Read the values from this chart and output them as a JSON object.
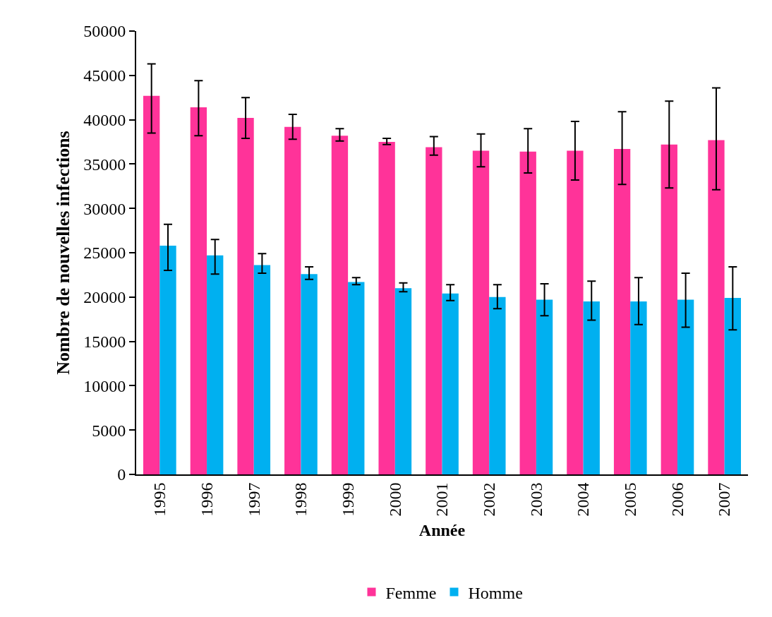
{
  "chart_data": {
    "type": "bar",
    "xlabel": "Année",
    "ylabel": "Nombre de nouvelles infections",
    "categories": [
      "1995",
      "1996",
      "1997",
      "1998",
      "1999",
      "2000",
      "2001",
      "2002",
      "2003",
      "2004",
      "2005",
      "2006",
      "2007"
    ],
    "series": [
      {
        "name": "Femme",
        "color": "#ff3399",
        "values": [
          42700,
          41400,
          40200,
          39200,
          38200,
          37500,
          36900,
          36500,
          36400,
          36500,
          36700,
          37200,
          37700
        ],
        "errors": [
          [
            38500,
            46300
          ],
          [
            38200,
            44400
          ],
          [
            37900,
            42500
          ],
          [
            37800,
            40600
          ],
          [
            37600,
            39000
          ],
          [
            37200,
            37900
          ],
          [
            36000,
            38100
          ],
          [
            34700,
            38400
          ],
          [
            34000,
            39000
          ],
          [
            33200,
            39800
          ],
          [
            32700,
            40900
          ],
          [
            32300,
            42100
          ],
          [
            32100,
            43600
          ]
        ]
      },
      {
        "name": "Homme",
        "color": "#00b0f0",
        "values": [
          25800,
          24700,
          23600,
          22600,
          21700,
          21000,
          20400,
          20000,
          19700,
          19500,
          19500,
          19700,
          19900
        ],
        "errors": [
          [
            23000,
            28200
          ],
          [
            22600,
            26500
          ],
          [
            22700,
            24900
          ],
          [
            22000,
            23400
          ],
          [
            21400,
            22200
          ],
          [
            20600,
            21600
          ],
          [
            19600,
            21400
          ],
          [
            18700,
            21400
          ],
          [
            17900,
            21500
          ],
          [
            17400,
            21800
          ],
          [
            16900,
            22200
          ],
          [
            16600,
            22700
          ],
          [
            16300,
            23400
          ]
        ]
      }
    ],
    "ylim": [
      0,
      50000
    ],
    "yticks": [
      0,
      5000,
      10000,
      15000,
      20000,
      25000,
      30000,
      35000,
      40000,
      45000,
      50000
    ],
    "grid": false,
    "legend": "bottom"
  }
}
